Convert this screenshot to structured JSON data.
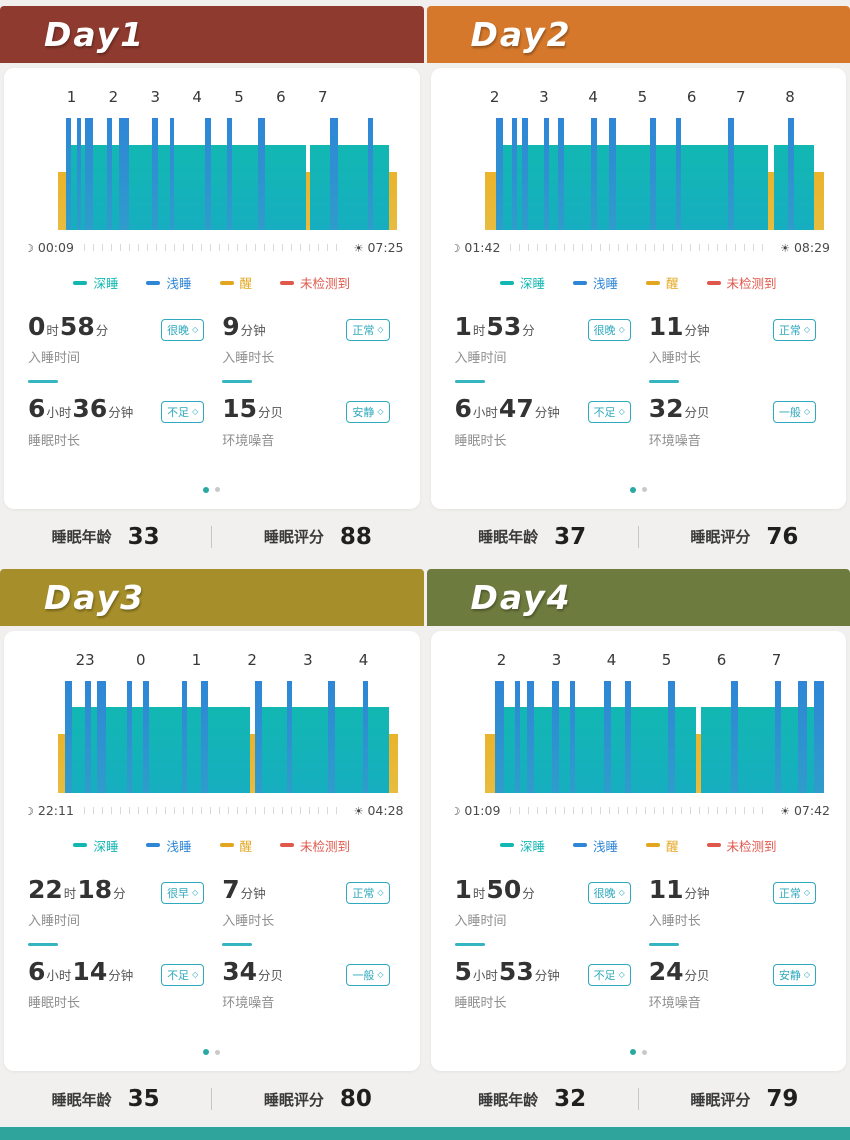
{
  "page": {
    "background": "#f1f0ee",
    "bottom_bar_color": "#2ea49d"
  },
  "colors": {
    "deep": "#12b7b2",
    "light": "#2f86d6",
    "awake": "#eab32b",
    "undetected": "#e0584c",
    "badge": "#2fa9bd"
  },
  "legend": [
    {
      "name": "deep-sleep",
      "label": "深睡",
      "color": "#12b7b2"
    },
    {
      "name": "light-sleep",
      "label": "浅睡",
      "color": "#2f86d6"
    },
    {
      "name": "awake",
      "label": "醒",
      "color": "#e3a61f"
    },
    {
      "name": "not-detected",
      "label": "未检测到",
      "color": "#e0584c"
    }
  ],
  "footer_labels": {
    "age": "睡眠年龄",
    "score": "睡眠评分"
  },
  "days": [
    {
      "title": "Day1",
      "header_color": "#8f3a2e",
      "hours": {
        "labels": [
          "1",
          "2",
          "3",
          "4",
          "5",
          "6",
          "7"
        ],
        "start": 0.04,
        "end": 0.78
      },
      "bed_time": "00:09",
      "wake_time": "07:25",
      "bars": [
        [
          "a",
          2.2
        ],
        [
          "l",
          1.4
        ],
        [
          "d",
          1.8
        ],
        [
          "l",
          1.2
        ],
        [
          "d",
          0.9
        ],
        [
          "l",
          2.4
        ],
        [
          "d",
          3.8
        ],
        [
          "l",
          1.4
        ],
        [
          "d",
          2.2
        ],
        [
          "l",
          2.8
        ],
        [
          "d",
          6.5
        ],
        [
          "l",
          1.6
        ],
        [
          "d",
          3.2
        ],
        [
          "l",
          1.4
        ],
        [
          "d",
          8.5
        ],
        [
          "l",
          1.8
        ],
        [
          "d",
          4.6
        ],
        [
          "l",
          1.2
        ],
        [
          "d",
          7.5
        ],
        [
          "l",
          1.8
        ],
        [
          "d",
          11.5
        ],
        [
          "a",
          1.4
        ],
        [
          "d",
          5.5
        ],
        [
          "l",
          2.2
        ],
        [
          "d",
          8.5
        ],
        [
          "l",
          1.4
        ],
        [
          "d",
          4.5
        ],
        [
          "a",
          2.4
        ]
      ],
      "stats": [
        {
          "parts": [
            [
              "0",
              "时"
            ],
            [
              "58",
              "分"
            ]
          ],
          "label": "入睡时间",
          "badge": "很晚"
        },
        {
          "parts": [
            [
              "9",
              "分钟"
            ]
          ],
          "label": "入睡时长",
          "badge": "正常"
        },
        {
          "parts": [
            [
              "6",
              "小时"
            ],
            [
              "36",
              "分钟"
            ]
          ],
          "label": "睡眠时长",
          "badge": "不足"
        },
        {
          "parts": [
            [
              "15",
              "分贝"
            ]
          ],
          "label": "环境噪音",
          "badge": "安静"
        }
      ],
      "age": "33",
      "score": "88"
    },
    {
      "title": "Day2",
      "header_color": "#d5782b",
      "hours": {
        "labels": [
          "2",
          "3",
          "4",
          "5",
          "6",
          "7",
          "8"
        ],
        "start": 0.03,
        "end": 0.9
      },
      "bed_time": "01:42",
      "wake_time": "08:29",
      "bars": [
        [
          "a",
          3.2
        ],
        [
          "l",
          1.8
        ],
        [
          "d",
          2.6
        ],
        [
          "l",
          1.3
        ],
        [
          "d",
          1.4
        ],
        [
          "l",
          1.8
        ],
        [
          "d",
          4.5
        ],
        [
          "l",
          1.4
        ],
        [
          "d",
          2.4
        ],
        [
          "l",
          1.8
        ],
        [
          "d",
          7.5
        ],
        [
          "l",
          1.4
        ],
        [
          "d",
          3.6
        ],
        [
          "l",
          1.8
        ],
        [
          "d",
          9.5
        ],
        [
          "l",
          1.6
        ],
        [
          "d",
          5.5
        ],
        [
          "l",
          1.4
        ],
        [
          "d",
          13
        ],
        [
          "l",
          1.8
        ],
        [
          "d",
          9.5
        ],
        [
          "a",
          1.6
        ],
        [
          "d",
          3.8
        ],
        [
          "l",
          1.8
        ],
        [
          "d",
          5.5
        ],
        [
          "a",
          2.8
        ]
      ],
      "stats": [
        {
          "parts": [
            [
              "1",
              "时"
            ],
            [
              "53",
              "分"
            ]
          ],
          "label": "入睡时间",
          "badge": "很晚"
        },
        {
          "parts": [
            [
              "11",
              "分钟"
            ]
          ],
          "label": "入睡时长",
          "badge": "正常"
        },
        {
          "parts": [
            [
              "6",
              "小时"
            ],
            [
              "47",
              "分钟"
            ]
          ],
          "label": "睡眠时长",
          "badge": "不足"
        },
        {
          "parts": [
            [
              "32",
              "分贝"
            ]
          ],
          "label": "环境噪音",
          "badge": "一般"
        }
      ],
      "age": "37",
      "score": "76"
    },
    {
      "title": "Day3",
      "header_color": "#a68f2a",
      "hours": {
        "labels": [
          "23",
          "0",
          "1",
          "2",
          "3",
          "4"
        ],
        "start": 0.08,
        "end": 0.9
      },
      "bed_time": "22:11",
      "wake_time": "04:28",
      "bars": [
        [
          "a",
          1.8
        ],
        [
          "l",
          1.8
        ],
        [
          "d",
          3.6
        ],
        [
          "l",
          1.4
        ],
        [
          "d",
          1.8
        ],
        [
          "l",
          2.2
        ],
        [
          "d",
          5.5
        ],
        [
          "l",
          1.4
        ],
        [
          "d",
          2.8
        ],
        [
          "l",
          1.8
        ],
        [
          "d",
          8.5
        ],
        [
          "l",
          1.4
        ],
        [
          "d",
          3.8
        ],
        [
          "l",
          1.8
        ],
        [
          "d",
          11
        ],
        [
          "a",
          1.4
        ],
        [
          "l",
          1.8
        ],
        [
          "d",
          6.5
        ],
        [
          "l",
          1.4
        ],
        [
          "d",
          9.5
        ],
        [
          "l",
          1.8
        ],
        [
          "d",
          7.5
        ],
        [
          "l",
          1.4
        ],
        [
          "d",
          5.5
        ],
        [
          "a",
          2.2
        ]
      ],
      "stats": [
        {
          "parts": [
            [
              "22",
              "时"
            ],
            [
              "18",
              "分"
            ]
          ],
          "label": "入睡时间",
          "badge": "很早"
        },
        {
          "parts": [
            [
              "7",
              "分钟"
            ]
          ],
          "label": "入睡时长",
          "badge": "正常"
        },
        {
          "parts": [
            [
              "6",
              "小时"
            ],
            [
              "14",
              "分钟"
            ]
          ],
          "label": "睡眠时长",
          "badge": "不足"
        },
        {
          "parts": [
            [
              "34",
              "分贝"
            ]
          ],
          "label": "环境噪音",
          "badge": "一般"
        }
      ],
      "age": "35",
      "score": "80"
    },
    {
      "title": "Day4",
      "header_color": "#6e7b3e",
      "hours": {
        "labels": [
          "2",
          "3",
          "4",
          "5",
          "6",
          "7"
        ],
        "start": 0.05,
        "end": 0.86
      },
      "bed_time": "01:09",
      "wake_time": "07:42",
      "bars": [
        [
          "a",
          2.8
        ],
        [
          "l",
          2.2
        ],
        [
          "d",
          2.8
        ],
        [
          "l",
          1.4
        ],
        [
          "d",
          1.8
        ],
        [
          "l",
          1.8
        ],
        [
          "d",
          4.5
        ],
        [
          "l",
          1.8
        ],
        [
          "d",
          2.8
        ],
        [
          "l",
          1.4
        ],
        [
          "d",
          7.5
        ],
        [
          "l",
          1.8
        ],
        [
          "d",
          3.6
        ],
        [
          "l",
          1.4
        ],
        [
          "d",
          9.5
        ],
        [
          "l",
          1.8
        ],
        [
          "d",
          5.5
        ],
        [
          "a",
          1.4
        ],
        [
          "d",
          7.5
        ],
        [
          "l",
          1.8
        ],
        [
          "d",
          9.5
        ],
        [
          "l",
          1.6
        ],
        [
          "d",
          4.5
        ],
        [
          "l",
          2.2
        ],
        [
          "d",
          1.8
        ],
        [
          "l",
          2.6
        ]
      ],
      "stats": [
        {
          "parts": [
            [
              "1",
              "时"
            ],
            [
              "50",
              "分"
            ]
          ],
          "label": "入睡时间",
          "badge": "很晚"
        },
        {
          "parts": [
            [
              "11",
              "分钟"
            ]
          ],
          "label": "入睡时长",
          "badge": "正常"
        },
        {
          "parts": [
            [
              "5",
              "小时"
            ],
            [
              "53",
              "分钟"
            ]
          ],
          "label": "睡眠时长",
          "badge": "不足"
        },
        {
          "parts": [
            [
              "24",
              "分贝"
            ]
          ],
          "label": "环境噪音",
          "badge": "安静"
        }
      ],
      "age": "32",
      "score": "79"
    }
  ]
}
